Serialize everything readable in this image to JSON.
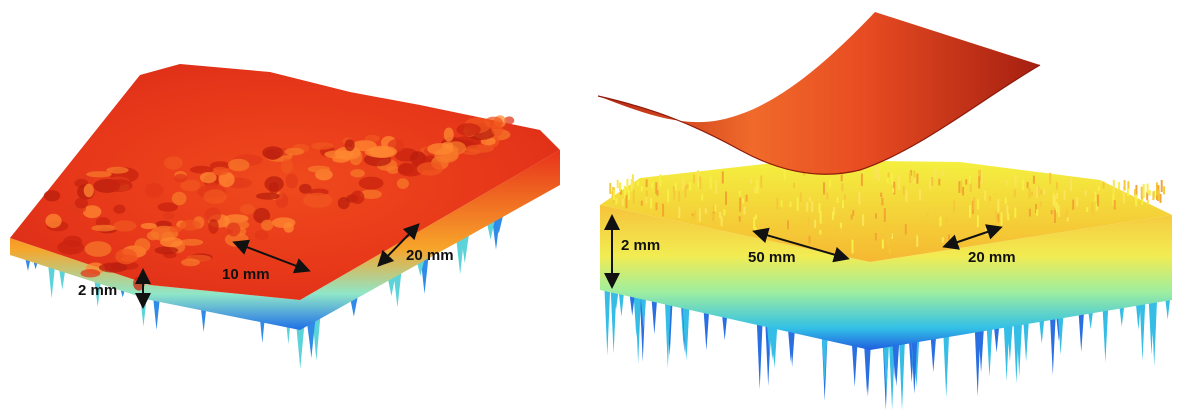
{
  "panels": [
    {
      "id": "left",
      "labels": {
        "height": "2 mm",
        "width_a": "10 mm",
        "width_b": "20 mm"
      }
    },
    {
      "id": "right",
      "labels": {
        "height": "2 mm",
        "width_a": "50 mm",
        "width_b": "20 mm"
      }
    }
  ],
  "colors": {
    "surface_top": "#e8321a",
    "surface_mid": "#f7c83a",
    "surface_low": "#6fe0d2",
    "surface_deep": "#1e6ee8",
    "sheet": "#d6401c",
    "arrow": "#111111"
  }
}
